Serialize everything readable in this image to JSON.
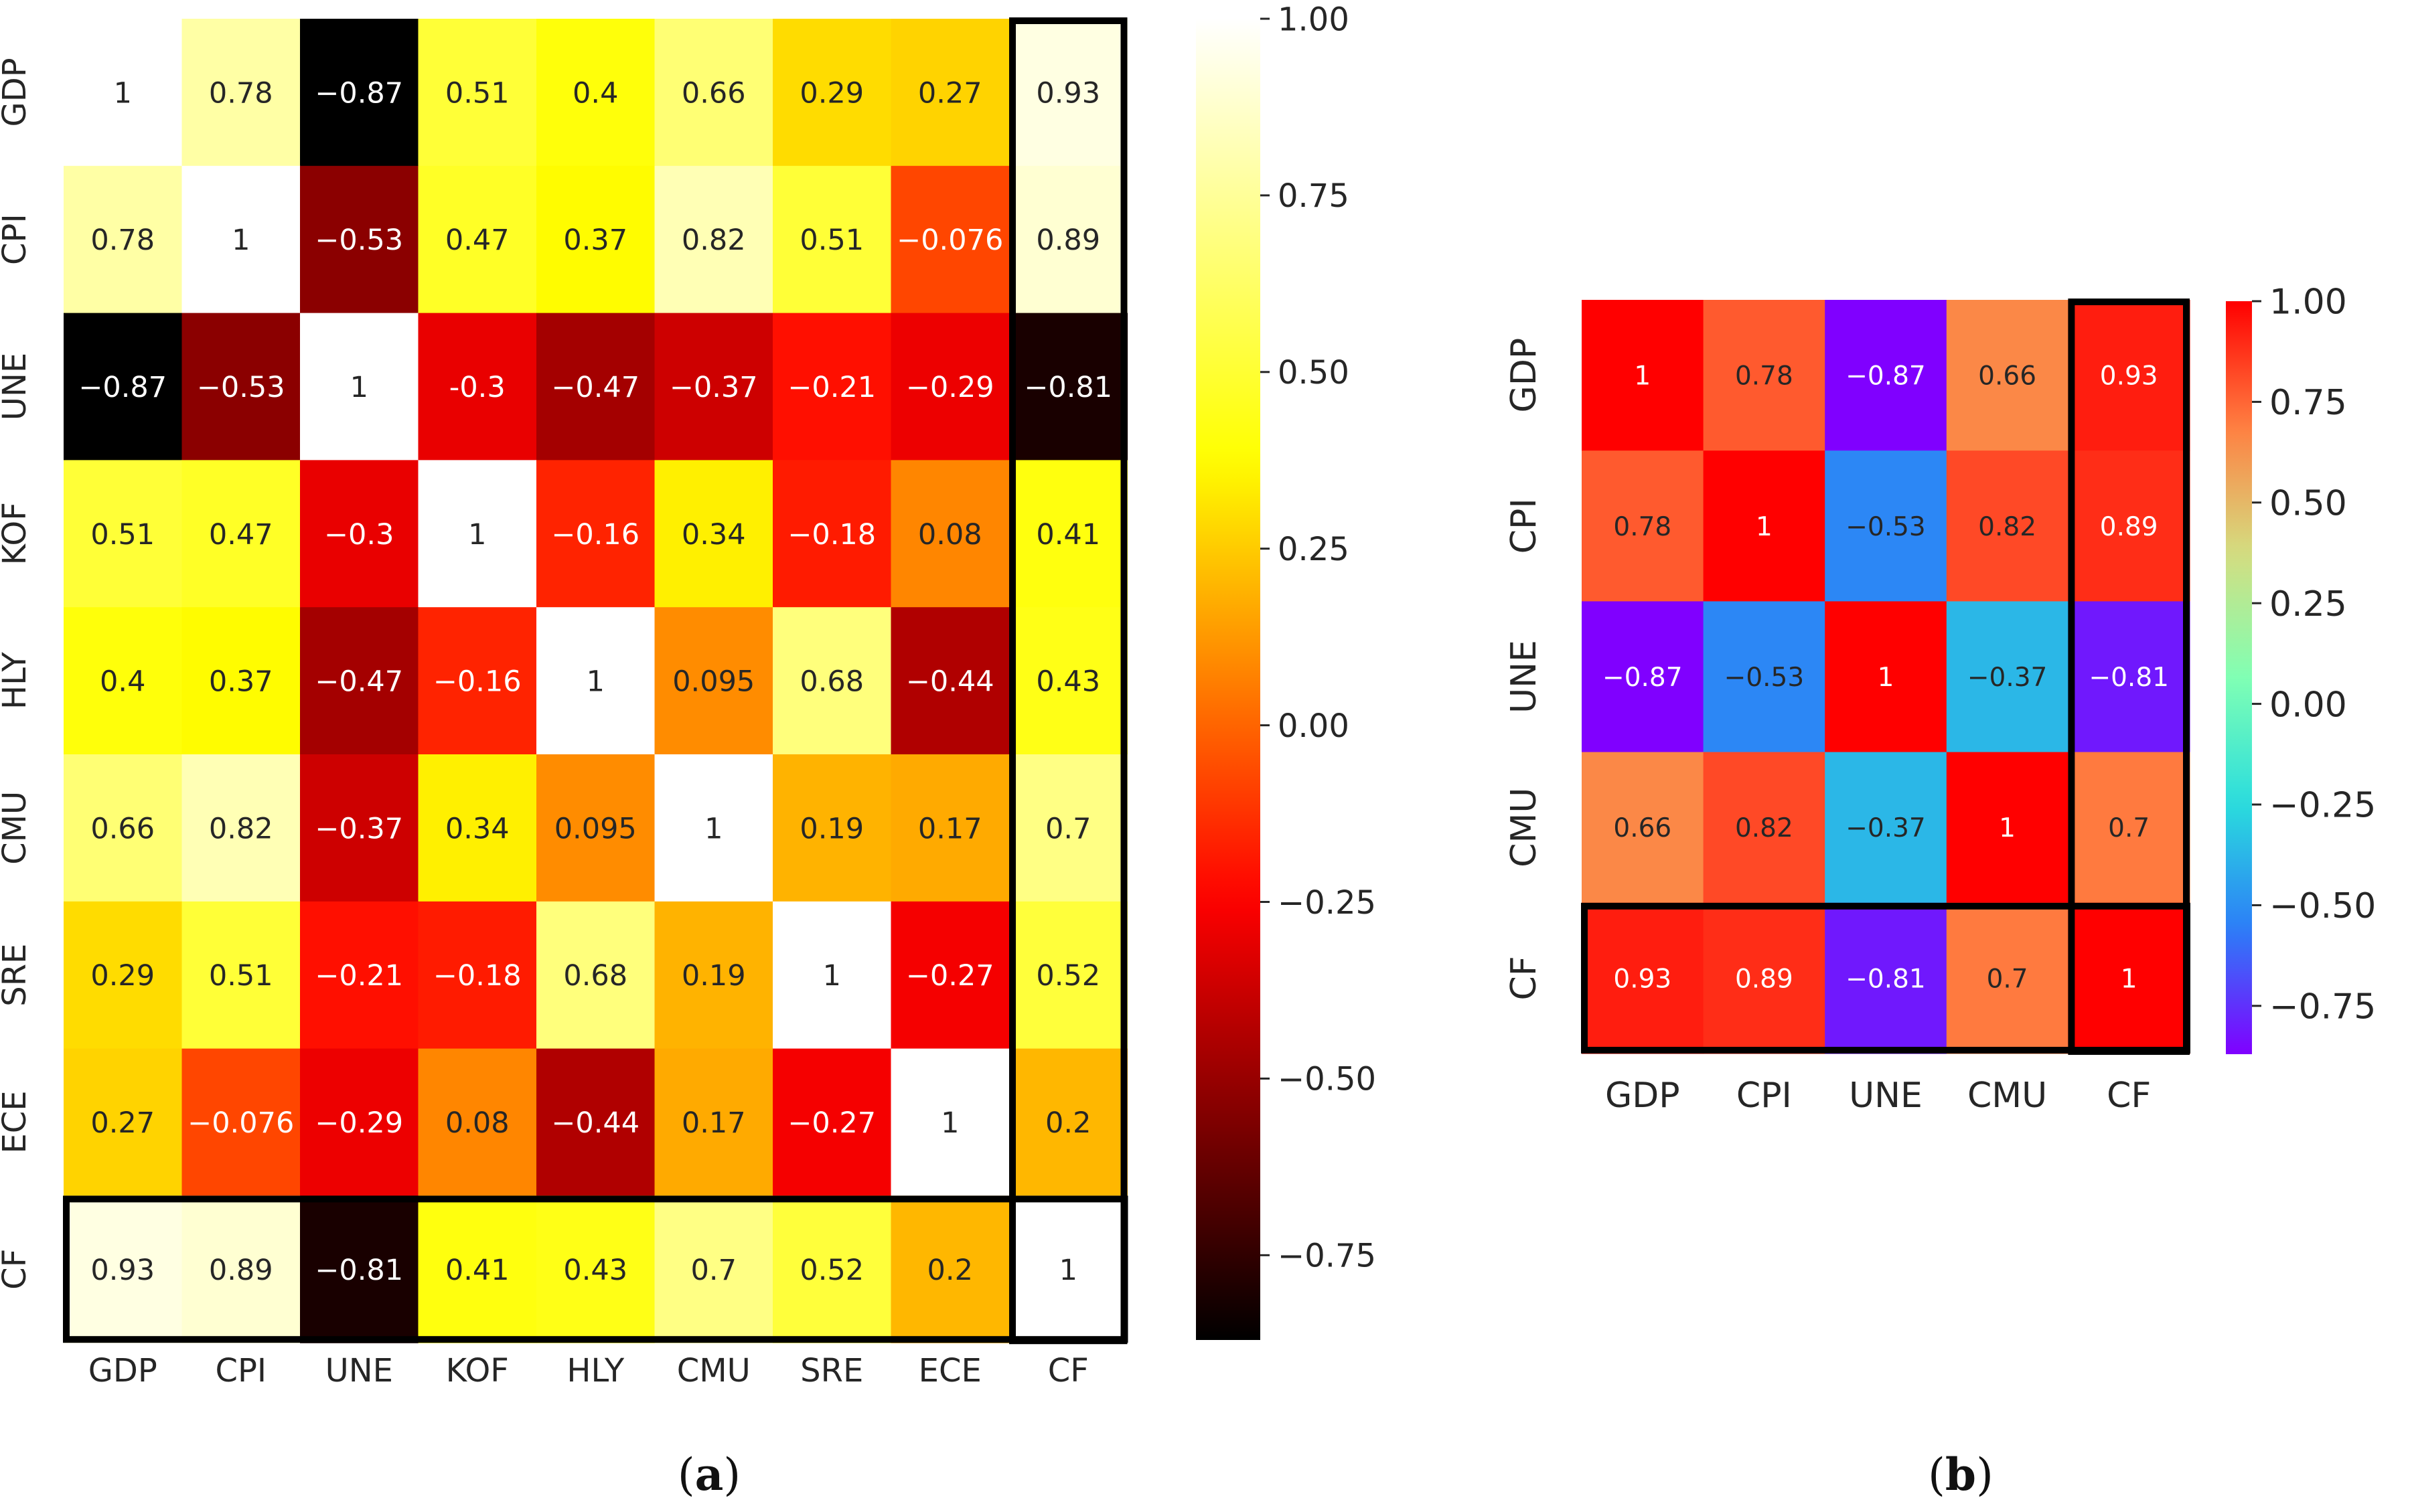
{
  "chart_data": [
    {
      "type": "heatmap",
      "panel_label": "(a)",
      "colormap": "hot",
      "colormap_stops": [
        "#000000",
        "#ff0000",
        "#ffff00",
        "#ffffff"
      ],
      "row_labels": [
        "GDP",
        "CPI",
        "UNE",
        "KOF",
        "HLY",
        "CMU",
        "SRE",
        "ECE",
        "CF"
      ],
      "col_labels": [
        "GDP",
        "CPI",
        "UNE",
        "KOF",
        "HLY",
        "CMU",
        "SRE",
        "ECE",
        "CF"
      ],
      "values": [
        [
          1,
          0.78,
          -0.87,
          0.51,
          0.4,
          0.66,
          0.29,
          0.27,
          0.93
        ],
        [
          0.78,
          1,
          -0.53,
          0.47,
          0.37,
          0.82,
          0.51,
          -0.076,
          0.89
        ],
        [
          -0.87,
          -0.53,
          1,
          -0.3,
          -0.47,
          -0.37,
          -0.21,
          -0.29,
          -0.81
        ],
        [
          0.51,
          0.47,
          -0.3,
          1,
          -0.16,
          0.34,
          -0.18,
          0.08,
          0.41
        ],
        [
          0.4,
          0.37,
          -0.47,
          -0.16,
          1,
          0.095,
          0.68,
          -0.44,
          0.43
        ],
        [
          0.66,
          0.82,
          -0.37,
          0.34,
          0.095,
          1,
          0.19,
          0.17,
          0.7
        ],
        [
          0.29,
          0.51,
          -0.21,
          -0.18,
          0.68,
          0.19,
          1,
          -0.27,
          0.52
        ],
        [
          0.27,
          -0.076,
          -0.29,
          0.08,
          -0.44,
          0.17,
          -0.27,
          1,
          0.2
        ],
        [
          0.93,
          0.89,
          -0.81,
          0.41,
          0.43,
          0.7,
          0.52,
          0.2,
          1
        ]
      ],
      "cell_text": [
        [
          "1",
          "0.78",
          "−0.87",
          "0.51",
          "0.4",
          "0.66",
          "0.29",
          "0.27",
          "0.93"
        ],
        [
          "0.78",
          "1",
          "−0.53",
          "0.47",
          "0.37",
          "0.82",
          "0.51",
          "−0.076",
          "0.89"
        ],
        [
          "−0.87",
          "−0.53",
          "1",
          "-0.3",
          "−0.47",
          "−0.37",
          "−0.21",
          "−0.29",
          "−0.81"
        ],
        [
          "0.51",
          "0.47",
          "−0.3",
          "1",
          "−0.16",
          "0.34",
          "−0.18",
          "0.08",
          "0.41"
        ],
        [
          "0.4",
          "0.37",
          "−0.47",
          "−0.16",
          "1",
          "0.095",
          "0.68",
          "−0.44",
          "0.43"
        ],
        [
          "0.66",
          "0.82",
          "−0.37",
          "0.34",
          "0.095",
          "1",
          "0.19",
          "0.17",
          "0.7"
        ],
        [
          "0.29",
          "0.51",
          "−0.21",
          "−0.18",
          "0.68",
          "0.19",
          "1",
          "−0.27",
          "0.52"
        ],
        [
          "0.27",
          "−0.076",
          "−0.29",
          "0.08",
          "−0.44",
          "0.17",
          "−0.27",
          "1",
          "0.2"
        ],
        [
          "0.93",
          "0.89",
          "−0.81",
          "0.41",
          "0.43",
          "0.7",
          "0.52",
          "0.2",
          "1"
        ]
      ],
      "highlight": {
        "row": "CF",
        "col": "CF"
      },
      "colorbar": {
        "range": [
          -0.87,
          1
        ],
        "ticks": [
          1,
          0.75,
          0.5,
          0.25,
          0,
          -0.25,
          -0.5,
          -0.75
        ],
        "tick_labels": [
          "1.00",
          "0.75",
          "0.50",
          "0.25",
          "0.00",
          "−0.25",
          "−0.50",
          "−0.75"
        ]
      }
    },
    {
      "type": "heatmap",
      "panel_label": "(b)",
      "colormap": "rainbow",
      "colormap_stops": [
        "#8000ff",
        "#2c7ef7",
        "#2adddd",
        "#80ffb4",
        "#d4dd80",
        "#ff7f41",
        "#ff0000"
      ],
      "row_labels": [
        "GDP",
        "CPI",
        "UNE",
        "CMU",
        "CF"
      ],
      "col_labels": [
        "GDP",
        "CPI",
        "UNE",
        "CMU",
        "CF"
      ],
      "values": [
        [
          1,
          0.78,
          -0.87,
          0.66,
          0.93
        ],
        [
          0.78,
          1,
          -0.53,
          0.82,
          0.89
        ],
        [
          -0.87,
          -0.53,
          1,
          -0.37,
          -0.81
        ],
        [
          0.66,
          0.82,
          -0.37,
          1,
          0.7
        ],
        [
          0.93,
          0.89,
          -0.81,
          0.7,
          1
        ]
      ],
      "cell_text": [
        [
          "1",
          "0.78",
          "−0.87",
          "0.66",
          "0.93"
        ],
        [
          "0.78",
          "1",
          "−0.53",
          "0.82",
          "0.89"
        ],
        [
          "−0.87",
          "−0.53",
          "1",
          "−0.37",
          "−0.81"
        ],
        [
          "0.66",
          "0.82",
          "−0.37",
          "1",
          "0.7"
        ],
        [
          "0.93",
          "0.89",
          "−0.81",
          "0.7",
          "1"
        ]
      ],
      "highlight": {
        "row": "CF",
        "col": "CF"
      },
      "colorbar": {
        "range": [
          -0.87,
          1
        ],
        "ticks": [
          1,
          0.75,
          0.5,
          0.25,
          0,
          -0.25,
          -0.5,
          -0.75
        ],
        "tick_labels": [
          "1.00",
          "0.75",
          "0.50",
          "0.25",
          "0.00",
          "−0.25",
          "−0.50",
          "−0.75"
        ]
      }
    }
  ]
}
